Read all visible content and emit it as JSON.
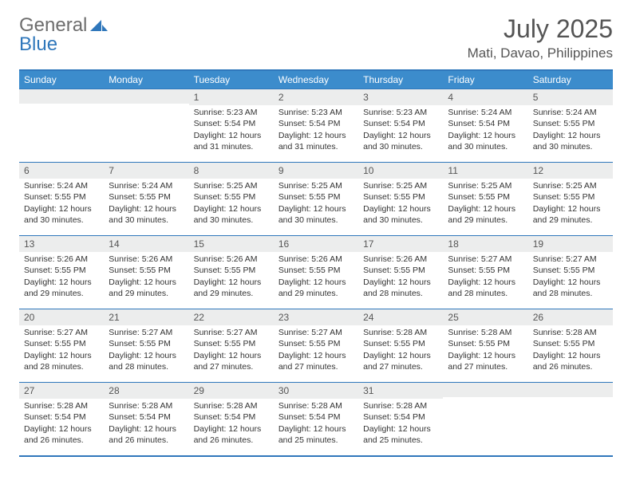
{
  "logo": {
    "text1": "General",
    "text2": "Blue"
  },
  "header": {
    "month_title": "July 2025",
    "location": "Mati, Davao, Philippines"
  },
  "style": {
    "header_bg": "#3c8ccc",
    "header_text": "#ffffff",
    "border_color": "#2f77bb",
    "daynum_bg": "#eceded",
    "text_color": "#333333",
    "title_color": "#555555",
    "body_fontsize": 10.5,
    "daynum_fontsize": 12,
    "header_fontsize": 12,
    "title_fontsize": 32,
    "location_fontsize": 17
  },
  "calendar": {
    "type": "table",
    "columns": [
      "Sunday",
      "Monday",
      "Tuesday",
      "Wednesday",
      "Thursday",
      "Friday",
      "Saturday"
    ],
    "weeks": [
      [
        null,
        null,
        {
          "n": "1",
          "sunrise": "5:23 AM",
          "sunset": "5:54 PM",
          "daylight": "12 hours and 31 minutes."
        },
        {
          "n": "2",
          "sunrise": "5:23 AM",
          "sunset": "5:54 PM",
          "daylight": "12 hours and 31 minutes."
        },
        {
          "n": "3",
          "sunrise": "5:23 AM",
          "sunset": "5:54 PM",
          "daylight": "12 hours and 30 minutes."
        },
        {
          "n": "4",
          "sunrise": "5:24 AM",
          "sunset": "5:54 PM",
          "daylight": "12 hours and 30 minutes."
        },
        {
          "n": "5",
          "sunrise": "5:24 AM",
          "sunset": "5:55 PM",
          "daylight": "12 hours and 30 minutes."
        }
      ],
      [
        {
          "n": "6",
          "sunrise": "5:24 AM",
          "sunset": "5:55 PM",
          "daylight": "12 hours and 30 minutes."
        },
        {
          "n": "7",
          "sunrise": "5:24 AM",
          "sunset": "5:55 PM",
          "daylight": "12 hours and 30 minutes."
        },
        {
          "n": "8",
          "sunrise": "5:25 AM",
          "sunset": "5:55 PM",
          "daylight": "12 hours and 30 minutes."
        },
        {
          "n": "9",
          "sunrise": "5:25 AM",
          "sunset": "5:55 PM",
          "daylight": "12 hours and 30 minutes."
        },
        {
          "n": "10",
          "sunrise": "5:25 AM",
          "sunset": "5:55 PM",
          "daylight": "12 hours and 30 minutes."
        },
        {
          "n": "11",
          "sunrise": "5:25 AM",
          "sunset": "5:55 PM",
          "daylight": "12 hours and 29 minutes."
        },
        {
          "n": "12",
          "sunrise": "5:25 AM",
          "sunset": "5:55 PM",
          "daylight": "12 hours and 29 minutes."
        }
      ],
      [
        {
          "n": "13",
          "sunrise": "5:26 AM",
          "sunset": "5:55 PM",
          "daylight": "12 hours and 29 minutes."
        },
        {
          "n": "14",
          "sunrise": "5:26 AM",
          "sunset": "5:55 PM",
          "daylight": "12 hours and 29 minutes."
        },
        {
          "n": "15",
          "sunrise": "5:26 AM",
          "sunset": "5:55 PM",
          "daylight": "12 hours and 29 minutes."
        },
        {
          "n": "16",
          "sunrise": "5:26 AM",
          "sunset": "5:55 PM",
          "daylight": "12 hours and 29 minutes."
        },
        {
          "n": "17",
          "sunrise": "5:26 AM",
          "sunset": "5:55 PM",
          "daylight": "12 hours and 28 minutes."
        },
        {
          "n": "18",
          "sunrise": "5:27 AM",
          "sunset": "5:55 PM",
          "daylight": "12 hours and 28 minutes."
        },
        {
          "n": "19",
          "sunrise": "5:27 AM",
          "sunset": "5:55 PM",
          "daylight": "12 hours and 28 minutes."
        }
      ],
      [
        {
          "n": "20",
          "sunrise": "5:27 AM",
          "sunset": "5:55 PM",
          "daylight": "12 hours and 28 minutes."
        },
        {
          "n": "21",
          "sunrise": "5:27 AM",
          "sunset": "5:55 PM",
          "daylight": "12 hours and 28 minutes."
        },
        {
          "n": "22",
          "sunrise": "5:27 AM",
          "sunset": "5:55 PM",
          "daylight": "12 hours and 27 minutes."
        },
        {
          "n": "23",
          "sunrise": "5:27 AM",
          "sunset": "5:55 PM",
          "daylight": "12 hours and 27 minutes."
        },
        {
          "n": "24",
          "sunrise": "5:28 AM",
          "sunset": "5:55 PM",
          "daylight": "12 hours and 27 minutes."
        },
        {
          "n": "25",
          "sunrise": "5:28 AM",
          "sunset": "5:55 PM",
          "daylight": "12 hours and 27 minutes."
        },
        {
          "n": "26",
          "sunrise": "5:28 AM",
          "sunset": "5:55 PM",
          "daylight": "12 hours and 26 minutes."
        }
      ],
      [
        {
          "n": "27",
          "sunrise": "5:28 AM",
          "sunset": "5:54 PM",
          "daylight": "12 hours and 26 minutes."
        },
        {
          "n": "28",
          "sunrise": "5:28 AM",
          "sunset": "5:54 PM",
          "daylight": "12 hours and 26 minutes."
        },
        {
          "n": "29",
          "sunrise": "5:28 AM",
          "sunset": "5:54 PM",
          "daylight": "12 hours and 26 minutes."
        },
        {
          "n": "30",
          "sunrise": "5:28 AM",
          "sunset": "5:54 PM",
          "daylight": "12 hours and 25 minutes."
        },
        {
          "n": "31",
          "sunrise": "5:28 AM",
          "sunset": "5:54 PM",
          "daylight": "12 hours and 25 minutes."
        },
        null,
        null
      ]
    ]
  },
  "labels": {
    "sunrise": "Sunrise:",
    "sunset": "Sunset:",
    "daylight": "Daylight:"
  }
}
